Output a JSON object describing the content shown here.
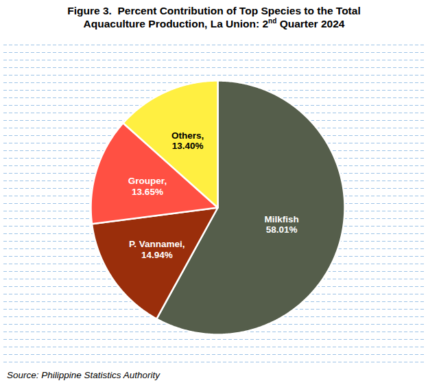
{
  "chart_data": {
    "type": "pie",
    "title": "Figure 3.  Percent Contribution of Top Species to the Total Aquaculture Production, La Union: 2nd Quarter 2024",
    "categories": [
      "Milkfish",
      "P. Vannamei,",
      "Grouper,",
      "Others,"
    ],
    "values": [
      58.01,
      14.94,
      13.65,
      13.4
    ],
    "value_labels": [
      "58.01%",
      "14.94%",
      "13.65%",
      "13.40%"
    ],
    "colors": [
      "#555e4b",
      "#9a2e0b",
      "#ff5043",
      "#ffef41"
    ],
    "data_labels": true,
    "source": "Source: Philippine Statistics Authority"
  }
}
